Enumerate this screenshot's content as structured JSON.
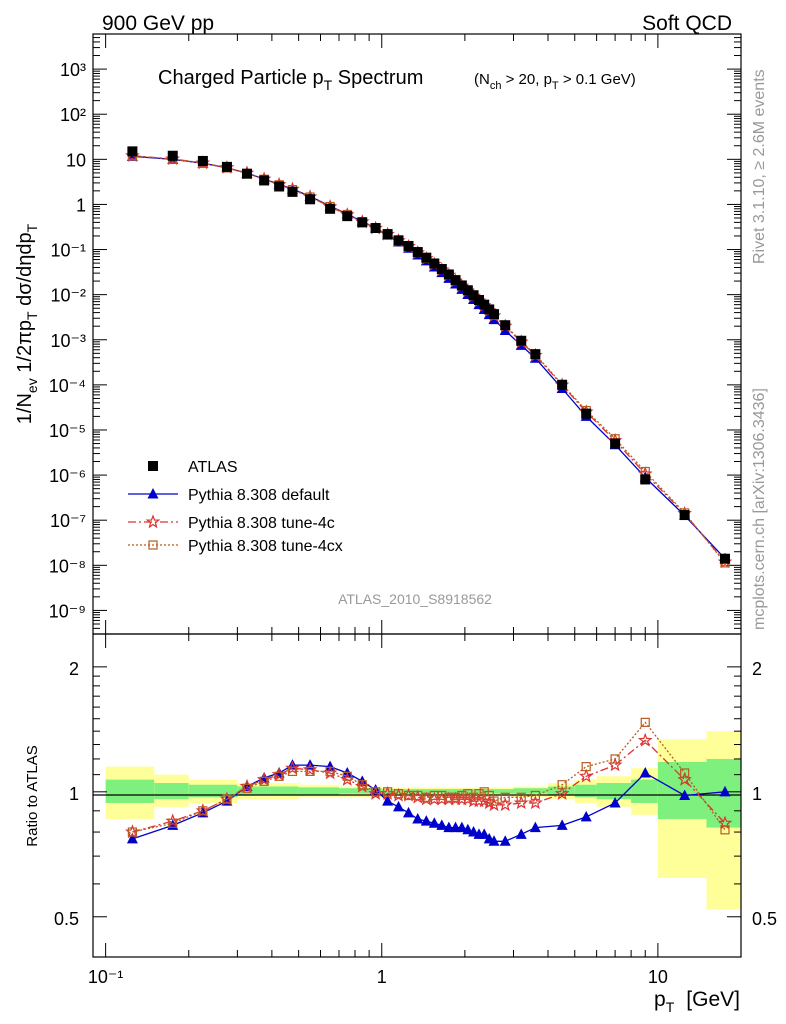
{
  "header": {
    "left": "900 GeV pp",
    "right": "Soft QCD"
  },
  "side_labels": {
    "rivet": "Rivet 3.1.10, ≥ 2.6M events",
    "mcplots": "mcplots.cern.ch [arXiv:1306.3436]"
  },
  "colors": {
    "atlas": "#000000",
    "default": "#0000cc",
    "tune4c": "#dd3333",
    "tune4cx": "#b85c1f",
    "band_inner": "#7df07d",
    "band_outer": "#ffff99"
  },
  "chart_data": [
    {
      "type": "line",
      "title": "Charged Particle p_T Spectrum",
      "title_main": "Charged Particle p",
      "title_sub": "T",
      "title_main2": " Spectrum",
      "title_note": "(N_ch > 20, p_T > 0.1 GeV)",
      "title_note_parts": [
        "(N",
        "ch",
        " > 20, p",
        "T",
        " > 0.1 GeV)"
      ],
      "ylabel": "1/N_ev 1/2πp_T dσ/dηdp_T",
      "ylabel_parts": [
        "1/N",
        "ev",
        " 1/2πp",
        "T",
        " dσ/dηdp",
        "T"
      ],
      "analysis_id": "ATLAS_2010_S8918562",
      "xscale": "log",
      "yscale": "log",
      "xlim": [
        0.09,
        20
      ],
      "ylim": [
        3e-10,
        6000.0
      ],
      "x_tick_labels": [
        "10⁻¹",
        "1",
        "10"
      ],
      "y_tick_labels": [
        "10⁻⁹",
        "10⁻⁸",
        "10⁻⁷",
        "10⁻⁶",
        "10⁻⁵",
        "10⁻⁴",
        "10⁻³",
        "10⁻²",
        "10⁻¹",
        "1",
        "10",
        "10²",
        "10³"
      ],
      "legend_position": "bottom-left",
      "x": [
        0.125,
        0.175,
        0.225,
        0.275,
        0.325,
        0.375,
        0.425,
        0.475,
        0.55,
        0.65,
        0.75,
        0.85,
        0.95,
        1.05,
        1.15,
        1.25,
        1.35,
        1.45,
        1.55,
        1.65,
        1.75,
        1.85,
        1.95,
        2.05,
        2.15,
        2.25,
        2.35,
        2.45,
        2.55,
        2.8,
        3.2,
        3.6,
        4.5,
        5.5,
        7,
        9,
        12.5,
        17.5
      ],
      "series": [
        {
          "name": "ATLAS",
          "values": [
            15,
            12,
            9.2,
            6.8,
            4.8,
            3.4,
            2.5,
            1.9,
            1.3,
            0.8,
            0.55,
            0.4,
            0.3,
            0.22,
            0.16,
            0.12,
            0.088,
            0.066,
            0.049,
            0.037,
            0.028,
            0.021,
            0.016,
            0.0125,
            0.0097,
            0.0076,
            0.006,
            0.0047,
            0.0037,
            0.0021,
            0.00095,
            0.00048,
            0.0001,
            2.3e-05,
            5e-06,
            8e-07,
            1.3e-07,
            1.4e-08
          ]
        },
        {
          "name": "Pythia 8.308 default",
          "values": [
            11.6,
            9.96,
            8.19,
            6.46,
            4.94,
            3.67,
            2.79,
            2.2,
            1.51,
            0.92,
            0.61,
            0.42,
            0.3,
            0.209,
            0.147,
            0.107,
            0.0757,
            0.0561,
            0.041,
            0.0307,
            0.023,
            0.0172,
            0.0131,
            0.0101,
            0.0078,
            0.006,
            0.0047,
            0.0036,
            0.0028,
            0.0016,
            0.00075,
            0.00039,
            8.3e-05,
            2e-05,
            4.7e-06,
            8.9e-07,
            1.28e-07,
            1.4e-08
          ]
        },
        {
          "name": "Pythia 8.308 tune-4c",
          "values": [
            12,
            10.2,
            8.28,
            6.53,
            4.94,
            3.64,
            2.75,
            2.17,
            1.47,
            0.89,
            0.59,
            0.41,
            0.296,
            0.217,
            0.157,
            0.117,
            0.085,
            0.063,
            0.047,
            0.0355,
            0.027,
            0.02,
            0.0154,
            0.012,
            0.0092,
            0.0072,
            0.0057,
            0.0044,
            0.0034,
            0.002,
            0.00089,
            0.00045,
            9.9e-05,
            2.5e-05,
            5.8e-06,
            1.06e-06,
            1.4e-07,
            1.18e-08
          ]
        },
        {
          "name": "Pythia 8.308 tune-4cx",
          "values": [
            11.9,
            10.1,
            8.19,
            6.46,
            4.85,
            3.61,
            2.73,
            2.13,
            1.46,
            0.9,
            0.6,
            0.415,
            0.3,
            0.22,
            0.158,
            0.118,
            0.086,
            0.064,
            0.048,
            0.036,
            0.0272,
            0.0204,
            0.0157,
            0.0124,
            0.0094,
            0.0075,
            0.006,
            0.0046,
            0.0035,
            0.0021,
            0.00092,
            0.00047,
            0.000103,
            2.7e-05,
            6.4e-06,
            1.2e-06,
            1.45e-07,
            1.13e-08
          ]
        }
      ]
    },
    {
      "type": "line",
      "ylabel": "Ratio to ATLAS",
      "xlabel": "p_T [GeV]",
      "xlabel_parts": [
        "p",
        "T",
        "[GeV]"
      ],
      "xscale": "log",
      "yscale": "log",
      "xlim": [
        0.09,
        20
      ],
      "ylim": [
        0.4,
        2.4
      ],
      "y_tick_labels": [
        "0.5",
        "1",
        "2"
      ],
      "x": [
        0.125,
        0.175,
        0.225,
        0.275,
        0.325,
        0.375,
        0.425,
        0.475,
        0.55,
        0.65,
        0.75,
        0.85,
        0.95,
        1.05,
        1.15,
        1.25,
        1.35,
        1.45,
        1.55,
        1.65,
        1.75,
        1.85,
        1.95,
        2.05,
        2.15,
        2.25,
        2.35,
        2.45,
        2.55,
        2.8,
        3.2,
        3.6,
        4.5,
        5.5,
        7,
        9,
        12.5,
        17.5
      ],
      "bands": {
        "edges": [
          0.1,
          0.15,
          0.2,
          0.3,
          0.5,
          0.7,
          1.0,
          1.5,
          2.0,
          2.5,
          3.0,
          4.0,
          5.0,
          6.0,
          8.0,
          10.0,
          15.0,
          20.0
        ],
        "inner_lo": [
          0.94,
          0.96,
          0.97,
          0.98,
          0.985,
          0.99,
          0.99,
          0.99,
          0.99,
          0.99,
          0.99,
          0.98,
          0.97,
          0.96,
          0.94,
          0.86,
          0.82
        ],
        "inner_hi": [
          1.07,
          1.05,
          1.04,
          1.03,
          1.025,
          1.02,
          1.015,
          1.015,
          1.015,
          1.015,
          1.02,
          1.03,
          1.04,
          1.05,
          1.07,
          1.18,
          1.2
        ],
        "outer_lo": [
          0.86,
          0.92,
          0.94,
          0.96,
          0.97,
          0.97,
          0.98,
          0.98,
          0.98,
          0.98,
          0.97,
          0.96,
          0.94,
          0.92,
          0.88,
          0.62,
          0.52
        ],
        "outer_hi": [
          1.15,
          1.1,
          1.07,
          1.05,
          1.04,
          1.03,
          1.025,
          1.025,
          1.025,
          1.025,
          1.03,
          1.05,
          1.07,
          1.09,
          1.14,
          1.34,
          1.4
        ]
      },
      "series": [
        {
          "name": "Pythia 8.308 default",
          "values": [
            0.77,
            0.83,
            0.89,
            0.95,
            1.03,
            1.08,
            1.11,
            1.16,
            1.16,
            1.15,
            1.11,
            1.06,
            1.01,
            0.95,
            0.92,
            0.89,
            0.86,
            0.85,
            0.84,
            0.83,
            0.82,
            0.82,
            0.82,
            0.81,
            0.8,
            0.79,
            0.79,
            0.77,
            0.76,
            0.76,
            0.79,
            0.82,
            0.83,
            0.87,
            0.94,
            1.11,
            0.98,
            1.0
          ]
        },
        {
          "name": "Pythia 8.308 tune-4c",
          "values": [
            0.8,
            0.85,
            0.9,
            0.96,
            1.03,
            1.07,
            1.1,
            1.14,
            1.13,
            1.11,
            1.07,
            1.03,
            0.99,
            0.99,
            0.98,
            0.98,
            0.97,
            0.96,
            0.96,
            0.96,
            0.96,
            0.96,
            0.96,
            0.96,
            0.95,
            0.95,
            0.95,
            0.94,
            0.93,
            0.93,
            0.94,
            0.94,
            0.99,
            1.09,
            1.16,
            1.33,
            1.07,
            0.84
          ]
        },
        {
          "name": "Pythia 8.308 tune-4cx",
          "values": [
            0.8,
            0.84,
            0.9,
            0.96,
            1.02,
            1.06,
            1.09,
            1.12,
            1.12,
            1.12,
            1.09,
            1.04,
            1.0,
            1.0,
            0.99,
            0.98,
            0.98,
            0.97,
            0.98,
            0.98,
            0.97,
            0.97,
            0.98,
            0.99,
            0.97,
            0.99,
            1.0,
            0.98,
            0.95,
            0.97,
            0.97,
            0.98,
            1.04,
            1.15,
            1.2,
            1.47,
            1.11,
            0.81
          ]
        }
      ]
    }
  ]
}
